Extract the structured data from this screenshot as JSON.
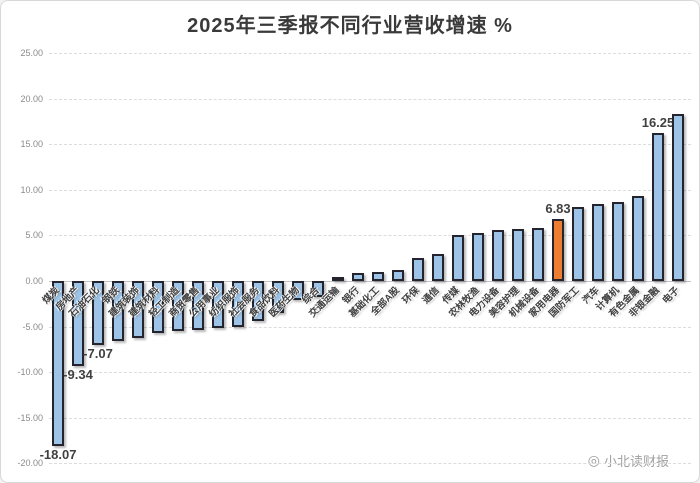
{
  "title": "2025年三季报不同行业营收增速 %",
  "watermark": {
    "icon": "camera-logo-icon",
    "text": "小北读财报",
    "symbol": "◎"
  },
  "colors": {
    "bar_fill": "#9DC3E6",
    "highlight_fill": "#ED7D31",
    "bar_border": "#24242e",
    "title_color": "#3a3a3a",
    "axis_label_color": "#8a8a8a",
    "value_label_color": "#404040",
    "grid_color": "#dcdcdc"
  },
  "chart_data": {
    "type": "bar",
    "title": "2025年三季报不同行业营收增速 %",
    "xlabel": "",
    "ylabel": "",
    "ylim": [
      -20,
      25
    ],
    "yticks": [
      25,
      20,
      15,
      10,
      5,
      0,
      -5,
      -10,
      -15,
      -20
    ],
    "grid": "dashed horizontal",
    "legend_position": "none",
    "categories": [
      "煤炭",
      "房地产",
      "石油石化",
      "钢铁",
      "建筑装饰",
      "建筑材料",
      "轻工制造",
      "商贸零售",
      "公用事业",
      "纺织服饰",
      "社会服务",
      "食品饮料",
      "医药生物",
      "综合",
      "交通运输",
      "银行",
      "基础化工",
      "全部A股",
      "环保",
      "通信",
      "传媒",
      "农林牧渔",
      "电力设备",
      "美容护理",
      "机械设备",
      "家用电器",
      "国防军工",
      "汽车",
      "计算机",
      "有色金属",
      "非银金融",
      "电子"
    ],
    "values": [
      -18.07,
      -9.34,
      -7.07,
      -6.55,
      -6.3,
      -5.65,
      -5.5,
      -5.35,
      -5.2,
      -5.0,
      -4.4,
      -3.5,
      -2.1,
      -1.75,
      0.21,
      0.9,
      1.0,
      1.2,
      2.5,
      3.0,
      5.0,
      5.3,
      5.55,
      5.7,
      5.85,
      6.83,
      8.1,
      8.4,
      8.7,
      9.3,
      16.25,
      18.3
    ],
    "highlight_index": 25,
    "data_labels": {
      "0": "-18.07",
      "1": "-9.34",
      "2": "-7.07",
      "25": "6.83",
      "30": "16.25"
    }
  }
}
